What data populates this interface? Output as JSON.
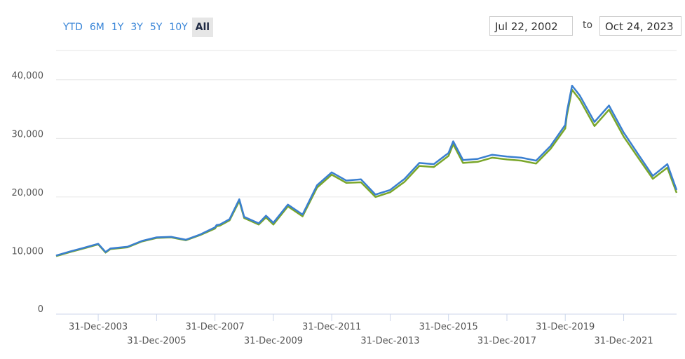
{
  "range_selector": {
    "buttons": [
      {
        "label": "YTD",
        "active": false
      },
      {
        "label": "6M",
        "active": false
      },
      {
        "label": "1Y",
        "active": false
      },
      {
        "label": "3Y",
        "active": false
      },
      {
        "label": "5Y",
        "active": false
      },
      {
        "label": "10Y",
        "active": false
      },
      {
        "label": "All",
        "active": true
      }
    ],
    "from_date": "Jul 22, 2002",
    "to_label": "to",
    "to_date": "Oct 24, 2023"
  },
  "chart_data": {
    "type": "line",
    "title": "",
    "xlabel": "",
    "ylabel": "",
    "x_range": [
      "2002-07-22",
      "2023-10-24"
    ],
    "ylim": [
      0,
      45000
    ],
    "y_ticks": [
      0,
      10000,
      20000,
      30000,
      40000
    ],
    "y_tick_labels": [
      "0",
      "10,000",
      "20,000",
      "30,000",
      "40,000"
    ],
    "x_tick_labels": [
      "31-Dec-2003",
      "31-Dec-2005",
      "31-Dec-2007",
      "31-Dec-2009",
      "31-Dec-2011",
      "31-Dec-2013",
      "31-Dec-2015",
      "31-Dec-2017",
      "31-Dec-2019",
      "31-Dec-2021"
    ],
    "x_tick_dates": [
      "2003-12-31",
      "2005-12-31",
      "2007-12-31",
      "2009-12-31",
      "2011-12-31",
      "2013-12-31",
      "2015-12-31",
      "2017-12-31",
      "2019-12-31",
      "2021-12-31"
    ],
    "grid": true,
    "colors": {
      "primary": "#3a7fd0",
      "secondary": "#7aa62a"
    },
    "series": [
      {
        "x": [
          "2002-07-22",
          "2003-01-15",
          "2003-06-01",
          "2003-12-31",
          "2004-04-01",
          "2004-06-01",
          "2004-12-31",
          "2005-06-30",
          "2005-12-31",
          "2006-06-30",
          "2006-12-31",
          "2007-06-30",
          "2007-12-31",
          "2008-01-20",
          "2008-03-01",
          "2008-06-30",
          "2008-10-30",
          "2008-12-31",
          "2009-06-30",
          "2009-09-30",
          "2009-12-31",
          "2010-06-30",
          "2010-12-31",
          "2011-06-30",
          "2011-09-30",
          "2011-12-31",
          "2012-06-30",
          "2012-12-31",
          "2013-06-30",
          "2013-12-31",
          "2014-06-30",
          "2014-12-31",
          "2015-06-30",
          "2015-12-31",
          "2016-02-28",
          "2016-06-30",
          "2016-12-31",
          "2017-06-30",
          "2017-12-31",
          "2018-06-30",
          "2018-12-31",
          "2019-06-30",
          "2019-12-31",
          "2020-01-20",
          "2020-03-25",
          "2020-06-30",
          "2020-12-31",
          "2021-06-30",
          "2021-12-31",
          "2022-06-30",
          "2022-12-31",
          "2023-06-30",
          "2023-10-24"
        ],
        "y": [
          10000,
          10700,
          11200,
          12000,
          10600,
          11200,
          11500,
          12500,
          13100,
          13200,
          12700,
          13600,
          14800,
          15200,
          15300,
          16200,
          19600,
          16600,
          15500,
          16800,
          15600,
          18700,
          17000,
          22000,
          23100,
          24200,
          22800,
          23000,
          20400,
          21200,
          23100,
          25800,
          25600,
          27500,
          29500,
          26300,
          26500,
          27200,
          26900,
          26700,
          26200,
          28700,
          32300,
          34500,
          39000,
          37300,
          32800,
          35600,
          31000,
          27300,
          23600,
          25600,
          21200
        ]
      },
      {
        "x": [
          "2002-07-22",
          "2003-01-15",
          "2003-06-01",
          "2003-12-31",
          "2004-04-01",
          "2004-06-01",
          "2004-12-31",
          "2005-06-30",
          "2005-12-31",
          "2006-06-30",
          "2006-12-31",
          "2007-06-30",
          "2007-12-31",
          "2008-01-20",
          "2008-03-01",
          "2008-06-30",
          "2008-10-30",
          "2008-12-31",
          "2009-06-30",
          "2009-09-30",
          "2009-12-31",
          "2010-06-30",
          "2010-12-31",
          "2011-06-30",
          "2011-09-30",
          "2011-12-31",
          "2012-06-30",
          "2012-12-31",
          "2013-06-30",
          "2013-12-31",
          "2014-06-30",
          "2014-12-31",
          "2015-06-30",
          "2015-12-31",
          "2016-02-28",
          "2016-06-30",
          "2016-12-31",
          "2017-06-30",
          "2017-12-31",
          "2018-06-30",
          "2018-12-31",
          "2019-06-30",
          "2019-12-31",
          "2020-01-20",
          "2020-03-25",
          "2020-06-30",
          "2020-12-31",
          "2021-06-30",
          "2021-12-31",
          "2022-06-30",
          "2022-12-31",
          "2023-06-30",
          "2023-10-24"
        ],
        "y": [
          9900,
          10600,
          11100,
          11900,
          10500,
          11100,
          11400,
          12400,
          13000,
          13100,
          12600,
          13500,
          14600,
          15000,
          15100,
          16000,
          19300,
          16400,
          15300,
          16500,
          15300,
          18400,
          16700,
          21600,
          22700,
          23800,
          22400,
          22500,
          20000,
          20800,
          22600,
          25300,
          25100,
          27000,
          29000,
          25800,
          26000,
          26700,
          26400,
          26200,
          25700,
          28200,
          31700,
          33900,
          38300,
          36600,
          32100,
          34900,
          30300,
          26700,
          23100,
          25000,
          20700
        ]
      }
    ]
  }
}
